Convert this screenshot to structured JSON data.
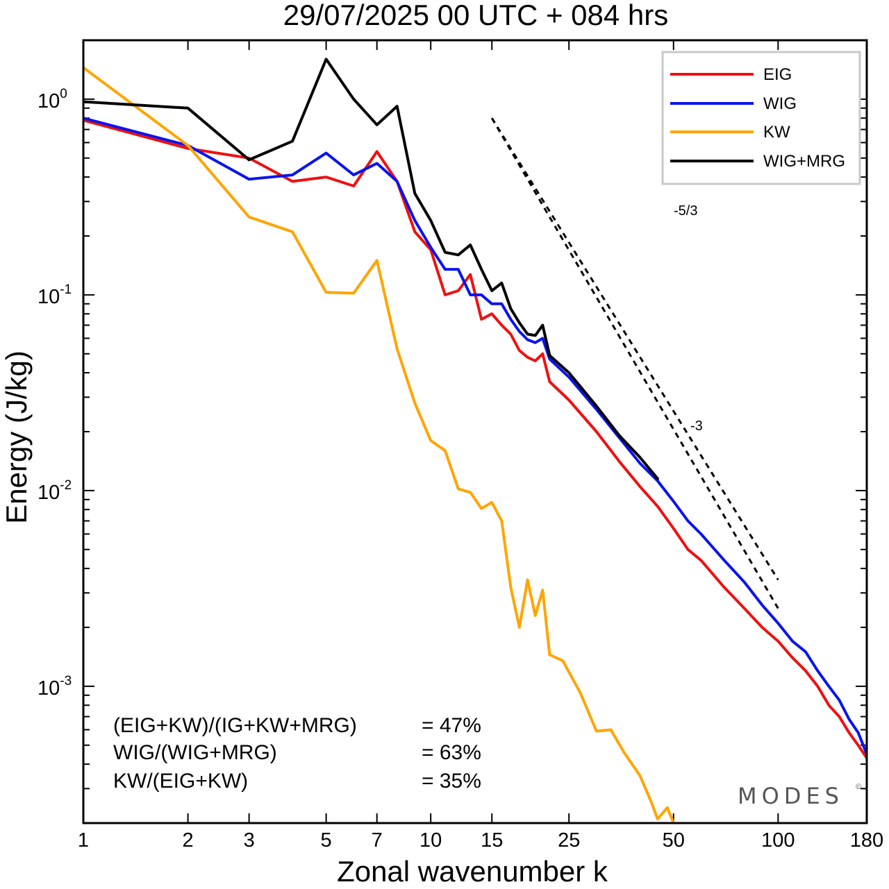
{
  "chart_data": {
    "type": "line",
    "title": "29/07/2025  00 UTC  + 084 hrs",
    "xlabel": "Zonal wavenumber k",
    "ylabel": "Energy (J/kg)",
    "xscale": "log",
    "yscale": "log",
    "xlim": [
      1,
      180
    ],
    "ylim": [
      0.0002,
      2.0
    ],
    "xticks": [
      1,
      2,
      3,
      5,
      7,
      10,
      15,
      25,
      50,
      100,
      180
    ],
    "xtick_labels": [
      "1",
      "2",
      "3",
      "5",
      "7",
      "10",
      "15",
      "25",
      "50",
      "100",
      "180"
    ],
    "yticks": [
      {
        "value": 1,
        "base": "10",
        "exp": "0"
      },
      {
        "value": 0.1,
        "base": "10",
        "exp": "-1"
      },
      {
        "value": 0.01,
        "base": "10",
        "exp": "-2"
      },
      {
        "value": 0.001,
        "base": "10",
        "exp": "-3"
      }
    ],
    "legend_position": "top-right",
    "series": [
      {
        "name": "EIG",
        "color": "#ee1111",
        "points": [
          [
            1,
            0.78
          ],
          [
            2,
            0.56
          ],
          [
            3,
            0.5
          ],
          [
            4,
            0.38
          ],
          [
            5,
            0.4
          ],
          [
            6,
            0.36
          ],
          [
            7,
            0.54
          ],
          [
            8,
            0.38
          ],
          [
            9,
            0.21
          ],
          [
            10,
            0.17
          ],
          [
            11,
            0.1
          ],
          [
            12,
            0.105
          ],
          [
            13,
            0.127
          ],
          [
            14,
            0.075
          ],
          [
            15,
            0.08
          ],
          [
            16,
            0.07
          ],
          [
            17,
            0.063
          ],
          [
            18,
            0.052
          ],
          [
            19,
            0.048
          ],
          [
            20,
            0.046
          ],
          [
            21,
            0.05
          ],
          [
            22,
            0.036
          ],
          [
            25,
            0.029
          ],
          [
            30,
            0.02
          ],
          [
            35,
            0.014
          ],
          [
            40,
            0.0105
          ],
          [
            45,
            0.0083
          ],
          [
            50,
            0.0064
          ],
          [
            55,
            0.005
          ],
          [
            60,
            0.0044
          ],
          [
            70,
            0.0032
          ],
          [
            80,
            0.0025
          ],
          [
            90,
            0.002
          ],
          [
            100,
            0.0017
          ],
          [
            110,
            0.0014
          ],
          [
            120,
            0.0012
          ],
          [
            130,
            0.001
          ],
          [
            140,
            0.0008
          ],
          [
            150,
            0.0007
          ],
          [
            160,
            0.00058
          ],
          [
            170,
            0.0005
          ],
          [
            180,
            0.00043
          ]
        ]
      },
      {
        "name": "WIG",
        "color": "#0a14ee",
        "points": [
          [
            1,
            0.8
          ],
          [
            2,
            0.58
          ],
          [
            3,
            0.39
          ],
          [
            4,
            0.41
          ],
          [
            5,
            0.53
          ],
          [
            6,
            0.41
          ],
          [
            7,
            0.47
          ],
          [
            8,
            0.38
          ],
          [
            9,
            0.24
          ],
          [
            10,
            0.175
          ],
          [
            11,
            0.135
          ],
          [
            12,
            0.135
          ],
          [
            13,
            0.1
          ],
          [
            14,
            0.1
          ],
          [
            15,
            0.09
          ],
          [
            16,
            0.09
          ],
          [
            17,
            0.075
          ],
          [
            18,
            0.065
          ],
          [
            19,
            0.059
          ],
          [
            20,
            0.057
          ],
          [
            21,
            0.06
          ],
          [
            22,
            0.047
          ],
          [
            25,
            0.038
          ],
          [
            30,
            0.026
          ],
          [
            35,
            0.0185
          ],
          [
            40,
            0.0138
          ],
          [
            45,
            0.0112
          ],
          [
            50,
            0.0088
          ],
          [
            55,
            0.007
          ],
          [
            60,
            0.006
          ],
          [
            70,
            0.0044
          ],
          [
            80,
            0.0034
          ],
          [
            90,
            0.0026
          ],
          [
            100,
            0.0021
          ],
          [
            110,
            0.0017
          ],
          [
            120,
            0.0015
          ],
          [
            130,
            0.0012
          ],
          [
            140,
            0.001
          ],
          [
            150,
            0.00085
          ],
          [
            160,
            0.00068
          ],
          [
            170,
            0.00058
          ],
          [
            180,
            0.00045
          ]
        ]
      },
      {
        "name": "KW",
        "color": "#ffa500",
        "points": [
          [
            1,
            1.45
          ],
          [
            2,
            0.58
          ],
          [
            3,
            0.25
          ],
          [
            4,
            0.21
          ],
          [
            5,
            0.103
          ],
          [
            6,
            0.102
          ],
          [
            7,
            0.15
          ],
          [
            8,
            0.053
          ],
          [
            9,
            0.028
          ],
          [
            10,
            0.018
          ],
          [
            11,
            0.016
          ],
          [
            12,
            0.0102
          ],
          [
            13,
            0.0098
          ],
          [
            14,
            0.0081
          ],
          [
            15,
            0.0087
          ],
          [
            16,
            0.007
          ],
          [
            17,
            0.0032
          ],
          [
            18,
            0.002
          ],
          [
            19,
            0.0035
          ],
          [
            20,
            0.0023
          ],
          [
            21,
            0.0031
          ],
          [
            22,
            0.00145
          ],
          [
            24,
            0.00135
          ],
          [
            27,
            0.00092
          ],
          [
            30,
            0.00059
          ],
          [
            33,
            0.0006
          ],
          [
            36,
            0.00046
          ],
          [
            40,
            0.00035
          ],
          [
            43,
            0.00026
          ],
          [
            45,
            0.00021
          ],
          [
            48,
            0.00024
          ],
          [
            50,
            0.0002
          ]
        ]
      },
      {
        "name": "WIG+MRG",
        "color": "#000000",
        "points": [
          [
            1,
            0.97
          ],
          [
            2,
            0.9
          ],
          [
            3,
            0.49
          ],
          [
            4,
            0.61
          ],
          [
            5,
            1.6
          ],
          [
            6,
            1.0
          ],
          [
            7,
            0.74
          ],
          [
            8,
            0.92
          ],
          [
            9,
            0.33
          ],
          [
            10,
            0.24
          ],
          [
            11,
            0.165
          ],
          [
            12,
            0.16
          ],
          [
            13,
            0.18
          ],
          [
            14,
            0.135
          ],
          [
            15,
            0.105
          ],
          [
            16,
            0.115
          ],
          [
            17,
            0.085
          ],
          [
            18,
            0.072
          ],
          [
            19,
            0.063
          ],
          [
            20,
            0.062
          ],
          [
            21,
            0.07
          ],
          [
            22,
            0.049
          ],
          [
            25,
            0.04
          ],
          [
            30,
            0.027
          ],
          [
            35,
            0.019
          ],
          [
            40,
            0.0148
          ],
          [
            45,
            0.0115
          ]
        ]
      }
    ],
    "reference_slopes": [
      {
        "label": "-5/3",
        "slope": -1.6667,
        "start": [
          15,
          0.8
        ],
        "end": [
          100,
          0.0035
        ]
      },
      {
        "label": "-3",
        "slope": -3,
        "start": [
          15,
          0.8
        ],
        "end": [
          100,
          0.0025
        ]
      }
    ],
    "annotations": [
      {
        "text": "(EIG+KW)/(IG+KW+MRG)",
        "value": "= 47%"
      },
      {
        "text": "WIG/(WIG+MRG)",
        "value": "= 63%"
      },
      {
        "text": "KW/(EIG+KW)",
        "value": "= 35%"
      }
    ],
    "brand": "MODES",
    "brand_mark": "©"
  }
}
